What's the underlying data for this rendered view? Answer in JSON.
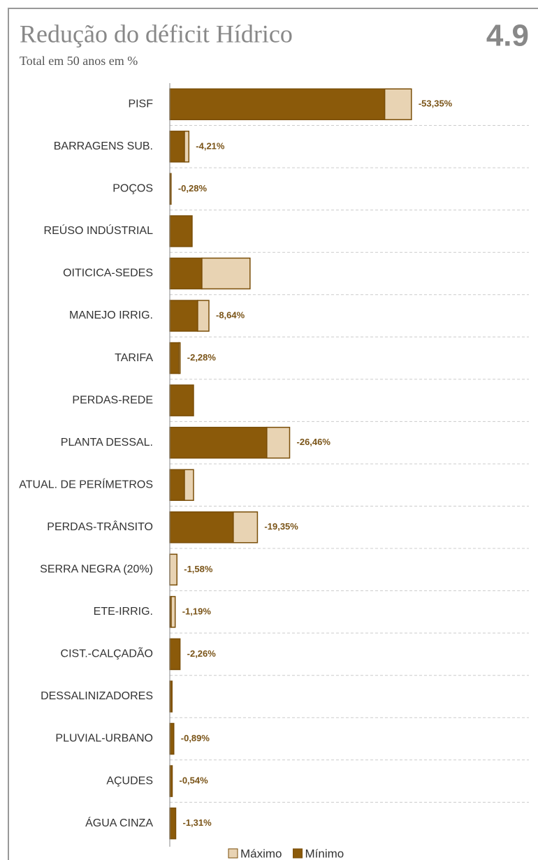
{
  "chart_data": {
    "type": "stacked_barh",
    "title": "Redução do déficit Hídrico",
    "subtitle": "Total em 50 anos em %",
    "figure_number": "4.9",
    "categories": [
      "PISF",
      "BARRAGENS SUB.",
      "POÇOS",
      "REÚSO INDÚSTRIAL",
      "OITICICA-SEDES",
      "MANEJO IRRIG.",
      "TARIFA",
      "PERDAS-REDE",
      "PLANTA DESSAL.",
      "ATUAL. DE PERÍMETROS",
      "PERDAS-TRÂNSITO",
      "SERRA NEGRA (20%)",
      "ETE-IRRIG.",
      "CIST.-CALÇADÃO",
      "DESSALINIZADORES",
      "PLUVIAL-URBANO",
      "AÇUDES",
      "ÁGUA CINZA"
    ],
    "series": [
      {
        "name": "Máximo",
        "color": "#e8d3b3",
        "values": [
          -5.89,
          -0.97,
          0,
          0,
          -10.63,
          -2.48,
          -0.28,
          0,
          -5.04,
          -2.0,
          -5.33,
          -1.58,
          -0.89,
          0,
          0,
          0,
          0,
          0
        ]
      },
      {
        "name": "Mínimo",
        "color": "#8b5a0a",
        "values": [
          -47.46,
          -3.24,
          -0.28,
          -4.93,
          -7.09,
          -6.16,
          -2.0,
          -5.24,
          -21.42,
          -3.24,
          -14.02,
          0,
          -0.3,
          -2.26,
          -0.5,
          -0.89,
          -0.54,
          -1.31
        ]
      }
    ],
    "value_labels": [
      "-53,35%",
      "-4,21%",
      "-0,28%",
      null,
      null,
      "-8,64%",
      "-2,28%",
      null,
      "-26,46%",
      null,
      "-19,35%",
      "-1,58%",
      "-1,19%",
      "-2,26%",
      null,
      "-0,89%",
      "-0,54%",
      "-1,31%"
    ],
    "xlim": [
      0,
      -56
    ]
  }
}
